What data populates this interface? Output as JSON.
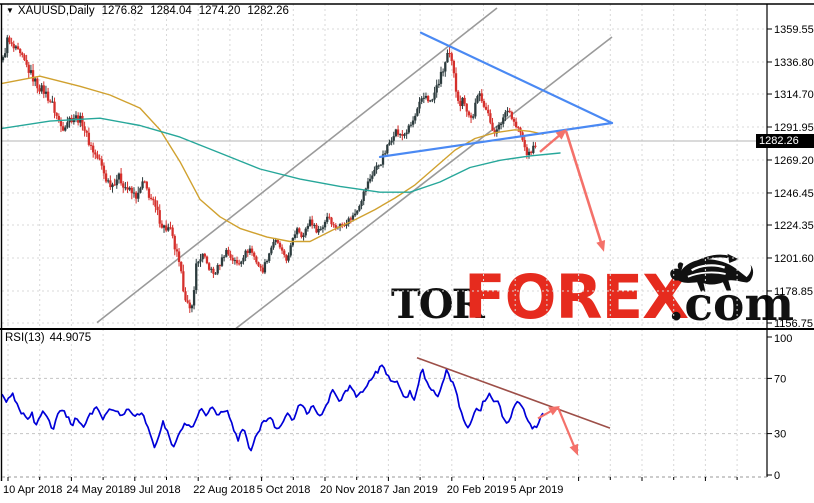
{
  "header": {
    "collapse_icon": "▼",
    "symbol": "XAUUSD,Daily",
    "open": "1276.82",
    "high": "1284.04",
    "low": "1274.20",
    "close": "1282.26"
  },
  "price_axis": {
    "last_price_label": "1282.26"
  },
  "rsi_label": {
    "name": "RSI(13)",
    "value": "44.9075"
  },
  "watermark": {
    "tor": "TOR",
    "forex": "FOREX",
    "com": ".com",
    "forex_color": "#e62b1e"
  },
  "colors": {
    "bull_candle": "#2c3b3d",
    "bear_candle": "#d5302c",
    "ma_fast": "#d0a12f",
    "ma_slow": "#27a79a",
    "trend_gray": "#9a9a9a",
    "wedge_blue": "#4a89f3",
    "arrow_red": "#f4716a",
    "rsi_line": "#0000d8",
    "rsi_trend": "#9d4f48",
    "grid": "#d8d8d8",
    "grid_dark": "#c4c4c4",
    "bid_line": "#b4b4b4",
    "axis_text": "#000000"
  },
  "chart_data": [
    {
      "type": "candlestick",
      "title": "XAUUSD Daily",
      "ylim": [
        1150,
        1377
      ],
      "yticks": [
        1359.55,
        1336.8,
        1314.7,
        1291.95,
        1269.2,
        1246.45,
        1224.35,
        1201.6,
        1178.85,
        1156.75
      ],
      "last_price": 1282.26,
      "x_labels": [
        "10 Apr 2018",
        "24 May 2018",
        "9 Jul 2018",
        "22 Aug 2018",
        "5 Oct 2018",
        "20 Nov 2018",
        "7 Jan 2019",
        "20 Feb 2019",
        "5 Apr 2019"
      ],
      "price_path": [
        [
          3,
          1338
        ],
        [
          7,
          1352
        ],
        [
          12,
          1347
        ],
        [
          18,
          1343
        ],
        [
          25,
          1336
        ],
        [
          32,
          1327
        ],
        [
          38,
          1320
        ],
        [
          45,
          1316
        ],
        [
          52,
          1308
        ],
        [
          58,
          1297
        ],
        [
          62,
          1291
        ],
        [
          68,
          1297
        ],
        [
          75,
          1299
        ],
        [
          82,
          1296
        ],
        [
          88,
          1283
        ],
        [
          95,
          1273
        ],
        [
          100,
          1268
        ],
        [
          106,
          1256
        ],
        [
          112,
          1252
        ],
        [
          118,
          1258
        ],
        [
          125,
          1251
        ],
        [
          132,
          1246
        ],
        [
          138,
          1244
        ],
        [
          143,
          1254
        ],
        [
          150,
          1244
        ],
        [
          157,
          1233
        ],
        [
          163,
          1223
        ],
        [
          170,
          1221
        ],
        [
          177,
          1203
        ],
        [
          183,
          1183
        ],
        [
          188,
          1168
        ],
        [
          191,
          1161
        ],
        [
          196,
          1196
        ],
        [
          202,
          1204
        ],
        [
          208,
          1196
        ],
        [
          214,
          1190
        ],
        [
          220,
          1198
        ],
        [
          226,
          1207
        ],
        [
          232,
          1201
        ],
        [
          238,
          1197
        ],
        [
          244,
          1204
        ],
        [
          250,
          1208
        ],
        [
          256,
          1200
        ],
        [
          262,
          1192
        ],
        [
          268,
          1203
        ],
        [
          274,
          1214
        ],
        [
          280,
          1209
        ],
        [
          286,
          1199
        ],
        [
          292,
          1212
        ],
        [
          297,
          1223
        ],
        [
          303,
          1216
        ],
        [
          310,
          1228
        ],
        [
          316,
          1221
        ],
        [
          322,
          1222
        ],
        [
          328,
          1232
        ],
        [
          334,
          1223
        ],
        [
          340,
          1224
        ],
        [
          347,
          1227
        ],
        [
          354,
          1231
        ],
        [
          360,
          1240
        ],
        [
          367,
          1252
        ],
        [
          374,
          1262
        ],
        [
          381,
          1268
        ],
        [
          388,
          1279
        ],
        [
          395,
          1290
        ],
        [
          401,
          1285
        ],
        [
          408,
          1290
        ],
        [
          414,
          1297
        ],
        [
          420,
          1308
        ],
        [
          426,
          1314
        ],
        [
          431,
          1308
        ],
        [
          437,
          1320
        ],
        [
          443,
          1331
        ],
        [
          448,
          1343
        ],
        [
          452,
          1335
        ],
        [
          456,
          1318
        ],
        [
          460,
          1308
        ],
        [
          464,
          1312
        ],
        [
          468,
          1301
        ],
        [
          472,
          1297
        ],
        [
          476,
          1309
        ],
        [
          480,
          1315
        ],
        [
          484,
          1308
        ],
        [
          488,
          1300
        ],
        [
          492,
          1292
        ],
        [
          496,
          1288
        ],
        [
          500,
          1293
        ],
        [
          504,
          1300
        ],
        [
          508,
          1306
        ],
        [
          512,
          1298
        ],
        [
          516,
          1292
        ],
        [
          520,
          1289
        ],
        [
          524,
          1279
        ],
        [
          528,
          1272
        ],
        [
          532,
          1276
        ],
        [
          535,
          1280
        ],
        [
          537,
          1282
        ]
      ],
      "volatility": [
        [
          3,
          1.3
        ],
        [
          60,
          1.15
        ],
        [
          100,
          1.1
        ],
        [
          150,
          1.25
        ],
        [
          190,
          1.35
        ],
        [
          210,
          0.85
        ],
        [
          300,
          0.7
        ],
        [
          360,
          0.85
        ],
        [
          420,
          1.0
        ],
        [
          450,
          1.25
        ],
        [
          480,
          1.0
        ],
        [
          537,
          0.8
        ]
      ],
      "ma_fast": [
        [
          2,
          1322
        ],
        [
          40,
          1327
        ],
        [
          80,
          1320
        ],
        [
          110,
          1314
        ],
        [
          140,
          1305
        ],
        [
          160,
          1290
        ],
        [
          180,
          1268
        ],
        [
          200,
          1242
        ],
        [
          220,
          1230
        ],
        [
          240,
          1222
        ],
        [
          267,
          1216
        ],
        [
          290,
          1213
        ],
        [
          310,
          1213
        ],
        [
          333,
          1221
        ],
        [
          355,
          1228
        ],
        [
          375,
          1235
        ],
        [
          395,
          1243
        ],
        [
          415,
          1252
        ],
        [
          435,
          1264
        ],
        [
          455,
          1276
        ],
        [
          475,
          1284
        ],
        [
          495,
          1288
        ],
        [
          515,
          1290
        ],
        [
          530,
          1289
        ],
        [
          543,
          1287
        ]
      ],
      "ma_slow": [
        [
          2,
          1291
        ],
        [
          50,
          1296
        ],
        [
          100,
          1298
        ],
        [
          140,
          1293
        ],
        [
          180,
          1285
        ],
        [
          220,
          1274
        ],
        [
          260,
          1263
        ],
        [
          300,
          1256
        ],
        [
          340,
          1251
        ],
        [
          380,
          1247
        ],
        [
          410,
          1247
        ],
        [
          440,
          1254
        ],
        [
          470,
          1264
        ],
        [
          500,
          1269
        ],
        [
          530,
          1272
        ],
        [
          560,
          1274
        ]
      ],
      "trend_channel": [
        {
          "from": [
            97,
            1157
          ],
          "to": [
            497,
            1374
          ]
        },
        {
          "from": [
            236,
            1153
          ],
          "to": [
            612,
            1354
          ]
        }
      ],
      "wedge": [
        {
          "from": [
            421,
            1357
          ],
          "to": [
            612,
            1294.7
          ]
        },
        {
          "from": [
            380,
            1271.3
          ],
          "to": [
            612,
            1294.7
          ]
        }
      ],
      "arrows": [
        {
          "from": [
            540,
            1274.8
          ],
          "to": [
            567,
            1290.6
          ]
        },
        {
          "from": [
            566,
            1289.2
          ],
          "to": [
            604,
            1205.8
          ]
        }
      ]
    },
    {
      "type": "line",
      "name": "RSI(13)",
      "current_value": 44.9075,
      "ylim": [
        0,
        100
      ],
      "levels": [
        100,
        70,
        30,
        0
      ],
      "points": [
        [
          2,
          57
        ],
        [
          7,
          52
        ],
        [
          12,
          60
        ],
        [
          20,
          47
        ],
        [
          27,
          40
        ],
        [
          32,
          44
        ],
        [
          36,
          35
        ],
        [
          43,
          47
        ],
        [
          48,
          40
        ],
        [
          53,
          33
        ],
        [
          58,
          46
        ],
        [
          63,
          48
        ],
        [
          72,
          36
        ],
        [
          77,
          42
        ],
        [
          83,
          34
        ],
        [
          90,
          44
        ],
        [
          98,
          49
        ],
        [
          103,
          40
        ],
        [
          112,
          49
        ],
        [
          120,
          44
        ],
        [
          128,
          47
        ],
        [
          135,
          43
        ],
        [
          143,
          45
        ],
        [
          150,
          30
        ],
        [
          155,
          19
        ],
        [
          163,
          38
        ],
        [
          168,
          30
        ],
        [
          173,
          20
        ],
        [
          185,
          38
        ],
        [
          192,
          35
        ],
        [
          202,
          49
        ],
        [
          207,
          43
        ],
        [
          213,
          51
        ],
        [
          218,
          43
        ],
        [
          227,
          48
        ],
        [
          233,
          35
        ],
        [
          238,
          25
        ],
        [
          244,
          35
        ],
        [
          250,
          17
        ],
        [
          257,
          30
        ],
        [
          263,
          38
        ],
        [
          270,
          42
        ],
        [
          277,
          33
        ],
        [
          288,
          45
        ],
        [
          293,
          38
        ],
        [
          300,
          53
        ],
        [
          307,
          45
        ],
        [
          313,
          49
        ],
        [
          320,
          42
        ],
        [
          333,
          61
        ],
        [
          340,
          54
        ],
        [
          350,
          64
        ],
        [
          357,
          56
        ],
        [
          367,
          66
        ],
        [
          374,
          72
        ],
        [
          382,
          79
        ],
        [
          390,
          69
        ],
        [
          398,
          67
        ],
        [
          405,
          56
        ],
        [
          410,
          60
        ],
        [
          414,
          54
        ],
        [
          422,
          77
        ],
        [
          428,
          65
        ],
        [
          433,
          62
        ],
        [
          438,
          57
        ],
        [
          447,
          76
        ],
        [
          455,
          62
        ],
        [
          460,
          49
        ],
        [
          465,
          35
        ],
        [
          470,
          35
        ],
        [
          477,
          49
        ],
        [
          480,
          46
        ],
        [
          483,
          53
        ],
        [
          490,
          59
        ],
        [
          495,
          51
        ],
        [
          497,
          56
        ],
        [
          503,
          41
        ],
        [
          508,
          38
        ],
        [
          512,
          45
        ],
        [
          518,
          56
        ],
        [
          523,
          47
        ],
        [
          528,
          40
        ],
        [
          533,
          34
        ],
        [
          536,
          35
        ],
        [
          543,
          45
        ]
      ],
      "trendline": {
        "from": [
          417,
          85
        ],
        "to": [
          610,
          34
        ]
      },
      "arrows": [
        {
          "from": [
            538,
            41
          ],
          "to": [
            560,
            50
          ]
        },
        {
          "from": [
            558,
            49
          ],
          "to": [
            578,
            14
          ]
        }
      ]
    }
  ]
}
